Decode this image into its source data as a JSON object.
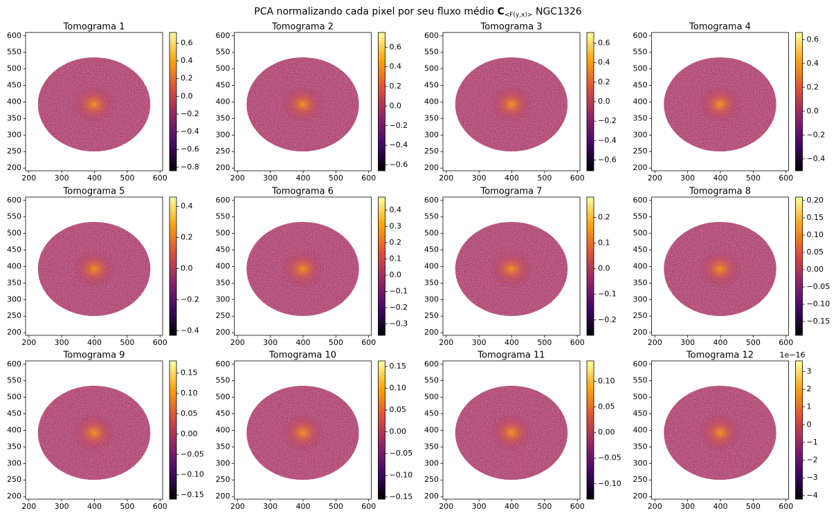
{
  "figure_title": {
    "prefix": "PCA normalizando cada pixel por seu fluxo médio",
    "symbol": "C",
    "subscript": "<F(y,x)>",
    "suffix": "NGC1326"
  },
  "chart_data": [
    {
      "type": "heatmap",
      "title": "Tomograma 1",
      "colormap": "inferno",
      "xlim": [
        190,
        608
      ],
      "ylim": [
        192,
        610
      ],
      "xticks": [
        200,
        300,
        400,
        500,
        600
      ],
      "yticks": [
        200,
        250,
        300,
        350,
        400,
        450,
        500,
        550,
        600
      ],
      "colorbar": {
        "clim": [
          -0.84,
          0.72
        ],
        "ticks": [
          {
            "value": -0.8,
            "label": "−0.8"
          },
          {
            "value": -0.6,
            "label": "−0.6"
          },
          {
            "value": -0.4,
            "label": "−0.4"
          },
          {
            "value": -0.2,
            "label": "−0.2"
          },
          {
            "value": 0,
            "label": "0.0"
          },
          0.2,
          0.4,
          0.6
        ]
      }
    },
    {
      "type": "heatmap",
      "title": "Tomograma 2",
      "colormap": "inferno",
      "xlim": [
        190,
        608
      ],
      "ylim": [
        192,
        610
      ],
      "xticks": [
        200,
        300,
        400,
        500,
        600
      ],
      "yticks": [
        200,
        250,
        300,
        350,
        400,
        450,
        500,
        550,
        600
      ],
      "colorbar": {
        "clim": [
          -0.66,
          0.75
        ],
        "ticks": [
          {
            "value": -0.6,
            "label": "−0.6"
          },
          {
            "value": -0.4,
            "label": "−0.4"
          },
          {
            "value": -0.2,
            "label": "−0.2"
          },
          {
            "value": 0,
            "label": "0.0"
          },
          0.2,
          0.4,
          0.6
        ]
      }
    },
    {
      "type": "heatmap",
      "title": "Tomograma 3",
      "colormap": "inferno",
      "xlim": [
        190,
        608
      ],
      "ylim": [
        192,
        610
      ],
      "xticks": [
        200,
        300,
        400,
        500,
        600
      ],
      "yticks": [
        200,
        250,
        300,
        350,
        400,
        450,
        500,
        550,
        600
      ],
      "colorbar": {
        "clim": [
          -0.71,
          0.71
        ],
        "ticks": [
          {
            "value": -0.6,
            "label": "−0.6"
          },
          {
            "value": -0.4,
            "label": "−0.4"
          },
          {
            "value": -0.2,
            "label": "−0.2"
          },
          {
            "value": 0,
            "label": "0.0"
          },
          0.2,
          0.4,
          0.6
        ]
      }
    },
    {
      "type": "heatmap",
      "title": "Tomograma 4",
      "colormap": "inferno",
      "xlim": [
        190,
        608
      ],
      "ylim": [
        192,
        610
      ],
      "xticks": [
        200,
        300,
        400,
        500,
        600
      ],
      "yticks": [
        200,
        250,
        300,
        350,
        400,
        450,
        500,
        550,
        600
      ],
      "colorbar": {
        "clim": [
          -0.5,
          0.66
        ],
        "ticks": [
          {
            "value": -0.4,
            "label": "−0.4"
          },
          {
            "value": -0.2,
            "label": "−0.2"
          },
          {
            "value": 0,
            "label": "0.0"
          },
          0.2,
          0.4,
          0.6
        ]
      }
    },
    {
      "type": "heatmap",
      "title": "Tomograma 5",
      "colormap": "inferno",
      "xlim": [
        190,
        608
      ],
      "ylim": [
        192,
        610
      ],
      "xticks": [
        200,
        300,
        400,
        500,
        600
      ],
      "yticks": [
        200,
        250,
        300,
        350,
        400,
        450,
        500,
        550,
        600
      ],
      "colorbar": {
        "clim": [
          -0.43,
          0.46
        ],
        "ticks": [
          {
            "value": -0.4,
            "label": "−0.4"
          },
          {
            "value": -0.2,
            "label": "−0.2"
          },
          {
            "value": 0,
            "label": "0.0"
          },
          0.2,
          0.4
        ]
      }
    },
    {
      "type": "heatmap",
      "title": "Tomograma 6",
      "colormap": "inferno",
      "xlim": [
        190,
        608
      ],
      "ylim": [
        192,
        610
      ],
      "xticks": [
        200,
        300,
        400,
        500,
        600
      ],
      "yticks": [
        200,
        250,
        300,
        350,
        400,
        450,
        500,
        550,
        600
      ],
      "colorbar": {
        "clim": [
          -0.37,
          0.48
        ],
        "ticks": [
          {
            "value": -0.3,
            "label": "−0.3"
          },
          {
            "value": -0.2,
            "label": "−0.2"
          },
          {
            "value": -0.1,
            "label": "−0.1"
          },
          {
            "value": 0,
            "label": "0.0"
          },
          0.1,
          0.2,
          0.3,
          0.4
        ]
      }
    },
    {
      "type": "heatmap",
      "title": "Tomograma 7",
      "colormap": "inferno",
      "xlim": [
        190,
        608
      ],
      "ylim": [
        192,
        610
      ],
      "xticks": [
        200,
        300,
        400,
        500,
        600
      ],
      "yticks": [
        200,
        250,
        300,
        350,
        400,
        450,
        500,
        550,
        600
      ],
      "colorbar": {
        "clim": [
          -0.26,
          0.28
        ],
        "ticks": [
          {
            "value": -0.2,
            "label": "−0.2"
          },
          {
            "value": -0.1,
            "label": "−0.1"
          },
          {
            "value": 0,
            "label": "0.0"
          },
          0.1,
          0.2
        ]
      }
    },
    {
      "type": "heatmap",
      "title": "Tomograma 8",
      "colormap": "inferno",
      "xlim": [
        190,
        608
      ],
      "ylim": [
        192,
        610
      ],
      "xticks": [
        200,
        300,
        400,
        500,
        600
      ],
      "yticks": [
        200,
        250,
        300,
        350,
        400,
        450,
        500,
        550,
        600
      ],
      "colorbar": {
        "clim": [
          -0.19,
          0.21
        ],
        "ticks": [
          {
            "value": -0.15,
            "label": "−0.15"
          },
          {
            "value": -0.1,
            "label": "−0.10"
          },
          {
            "value": -0.05,
            "label": "−0.05"
          },
          {
            "value": 0,
            "label": "0.00"
          },
          0.05,
          {
            "value": 0.1,
            "label": "0.10"
          },
          0.15,
          {
            "value": 0.2,
            "label": "0.20"
          }
        ]
      }
    },
    {
      "type": "heatmap",
      "title": "Tomograma 9",
      "colormap": "inferno",
      "xlim": [
        190,
        608
      ],
      "ylim": [
        192,
        610
      ],
      "xticks": [
        200,
        300,
        400,
        500,
        600
      ],
      "yticks": [
        200,
        250,
        300,
        350,
        400,
        450,
        500,
        550,
        600
      ],
      "colorbar": {
        "clim": [
          -0.16,
          0.18
        ],
        "ticks": [
          {
            "value": -0.15,
            "label": "−0.15"
          },
          {
            "value": -0.1,
            "label": "−0.10"
          },
          {
            "value": -0.05,
            "label": "−0.05"
          },
          {
            "value": 0,
            "label": "0.00"
          },
          0.05,
          {
            "value": 0.1,
            "label": "0.10"
          },
          0.15
        ]
      }
    },
    {
      "type": "heatmap",
      "title": "Tomograma 10",
      "colormap": "inferno",
      "xlim": [
        190,
        608
      ],
      "ylim": [
        192,
        610
      ],
      "xticks": [
        200,
        300,
        400,
        500,
        600
      ],
      "yticks": [
        200,
        250,
        300,
        350,
        400,
        450,
        500,
        550,
        600
      ],
      "colorbar": {
        "clim": [
          -0.155,
          0.163
        ],
        "ticks": [
          {
            "value": -0.15,
            "label": "−0.15"
          },
          {
            "value": -0.1,
            "label": "−0.10"
          },
          {
            "value": -0.05,
            "label": "−0.05"
          },
          {
            "value": 0,
            "label": "0.00"
          },
          0.05,
          {
            "value": 0.1,
            "label": "0.10"
          },
          0.15
        ]
      }
    },
    {
      "type": "heatmap",
      "title": "Tomograma 11",
      "colormap": "inferno",
      "xlim": [
        190,
        608
      ],
      "ylim": [
        192,
        610
      ],
      "xticks": [
        200,
        300,
        400,
        500,
        600
      ],
      "yticks": [
        200,
        250,
        300,
        350,
        400,
        450,
        500,
        550,
        600
      ],
      "colorbar": {
        "clim": [
          -0.13,
          0.14
        ],
        "ticks": [
          {
            "value": -0.1,
            "label": "−0.10"
          },
          {
            "value": -0.05,
            "label": "−0.05"
          },
          {
            "value": 0,
            "label": "0.00"
          },
          0.05,
          {
            "value": 0.1,
            "label": "0.10"
          }
        ]
      }
    },
    {
      "type": "heatmap",
      "title": "Tomograma 12",
      "colormap": "inferno",
      "xlim": [
        190,
        608
      ],
      "ylim": [
        192,
        610
      ],
      "xticks": [
        200,
        300,
        400,
        500,
        600
      ],
      "yticks": [
        200,
        250,
        300,
        350,
        400,
        450,
        500,
        550,
        600
      ],
      "colorbar": {
        "clim": [
          -4.2,
          3.6
        ],
        "offset_label": "1e−16",
        "ticks": [
          {
            "value": -4,
            "label": "−4"
          },
          {
            "value": -3,
            "label": "−3"
          },
          {
            "value": -2,
            "label": "−2"
          },
          {
            "value": -1,
            "label": "−1"
          },
          0,
          1,
          2,
          3
        ]
      }
    }
  ]
}
